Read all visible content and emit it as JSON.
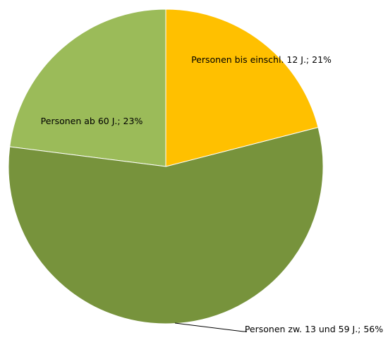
{
  "chart_data": {
    "type": "pie",
    "values": [
      21,
      56,
      23
    ],
    "value_labels": [
      "Personen bis einschl. 12 J.; 21%",
      "Personen zw. 13 und 59 J.; 56%",
      "Personen ab 60 J.; 23%"
    ],
    "colors": [
      "#FFC000",
      "#77933C",
      "#9BBB59"
    ]
  }
}
